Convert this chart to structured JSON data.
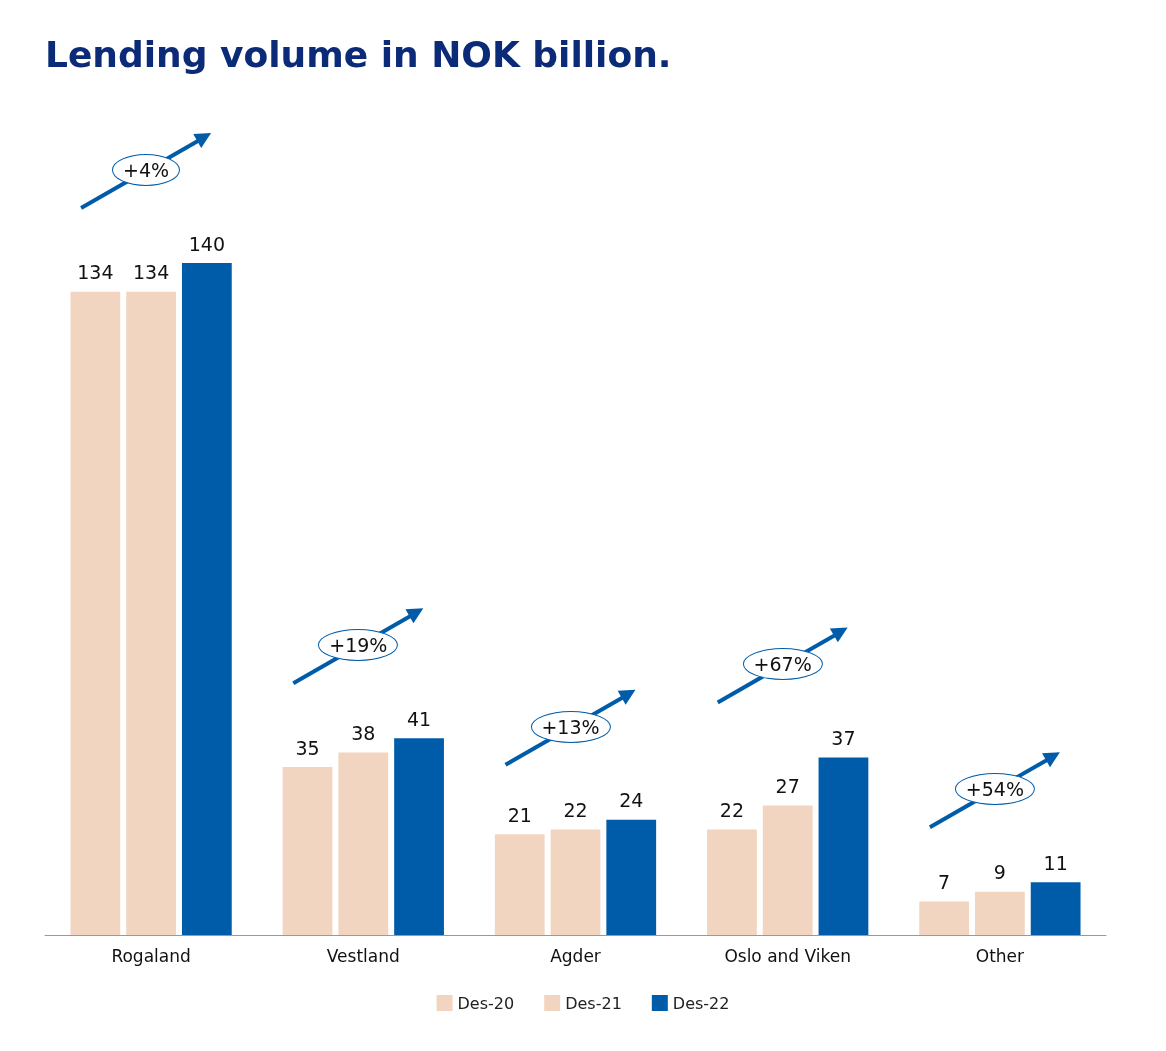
{
  "chart_data": {
    "type": "bar",
    "title": "Lending volume in NOK billion.",
    "categories": [
      "Rogaland",
      "Vestland",
      "Agder",
      "Oslo and Viken",
      "Other"
    ],
    "series": [
      {
        "name": "Des-20",
        "color": "#f2d5c0",
        "values": [
          134,
          35,
          21,
          22,
          7
        ]
      },
      {
        "name": "Des-21",
        "color": "#f2d5c0",
        "values": [
          134,
          38,
          22,
          27,
          9
        ]
      },
      {
        "name": "Des-22",
        "color": "#005ca9",
        "values": [
          140,
          41,
          24,
          37,
          11
        ]
      }
    ],
    "data_labels": true,
    "legend": "bottom",
    "grid": false,
    "annotations": [
      "+4%",
      "+19%",
      "+13%",
      "+67%",
      "+54%"
    ]
  }
}
